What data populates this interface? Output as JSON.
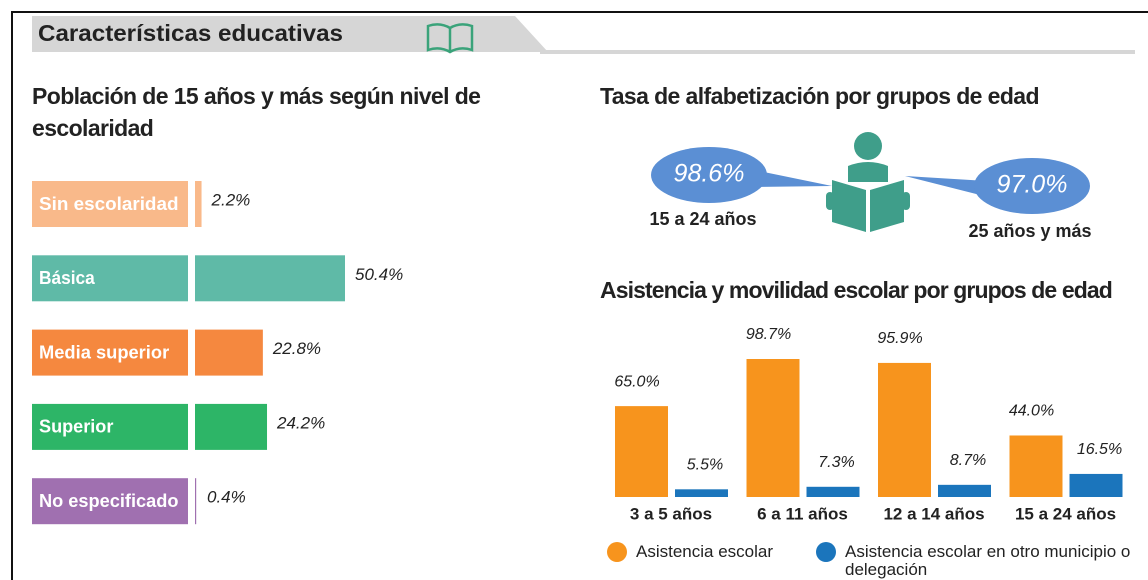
{
  "header": {
    "title": "Características educativas"
  },
  "chart_data": [
    {
      "type": "hbar",
      "title": "Población de 15 años y más según nivel de escolaridad",
      "categories": [
        "Sin escolaridad",
        "Básica",
        "Media superior",
        "Superior",
        "No especificado"
      ],
      "values": [
        2.2,
        50.4,
        22.8,
        24.2,
        0.4
      ],
      "value_labels": [
        "2.2%",
        "50.4%",
        "22.8%",
        "24.2%",
        "0.4%"
      ],
      "colors": [
        "#f9b98a",
        "#5fbaa7",
        "#f5883f",
        "#2db567",
        "#a070b0"
      ]
    },
    {
      "type": "pictogram",
      "title": "Tasa de alfabetización por grupos de edad",
      "categories": [
        "15 a 24 años",
        "25 años y más"
      ],
      "values": [
        98.6,
        97.0
      ],
      "value_labels": [
        "98.6%",
        "97.0%"
      ],
      "color": "#5b8fd4"
    },
    {
      "type": "grouped_bar",
      "title": "Asistencia y movilidad escolar por grupos de edad",
      "categories": [
        "3 a 5 años",
        "6 a 11 años",
        "12 a 14 años",
        "15 a 24 años"
      ],
      "series": [
        {
          "name": "Asistencia escolar",
          "color": "#f7941d",
          "values": [
            65.0,
            98.7,
            95.9,
            44.0
          ],
          "value_labels": [
            "65.0%",
            "98.7%",
            "95.9%",
            "44.0%"
          ]
        },
        {
          "name": "Asistencia escolar en otro municipio o delegación",
          "color": "#1b75bc",
          "values": [
            5.5,
            7.3,
            8.7,
            16.5
          ],
          "value_labels": [
            "5.5%",
            "7.3%",
            "8.7%",
            "16.5%"
          ]
        }
      ]
    }
  ]
}
